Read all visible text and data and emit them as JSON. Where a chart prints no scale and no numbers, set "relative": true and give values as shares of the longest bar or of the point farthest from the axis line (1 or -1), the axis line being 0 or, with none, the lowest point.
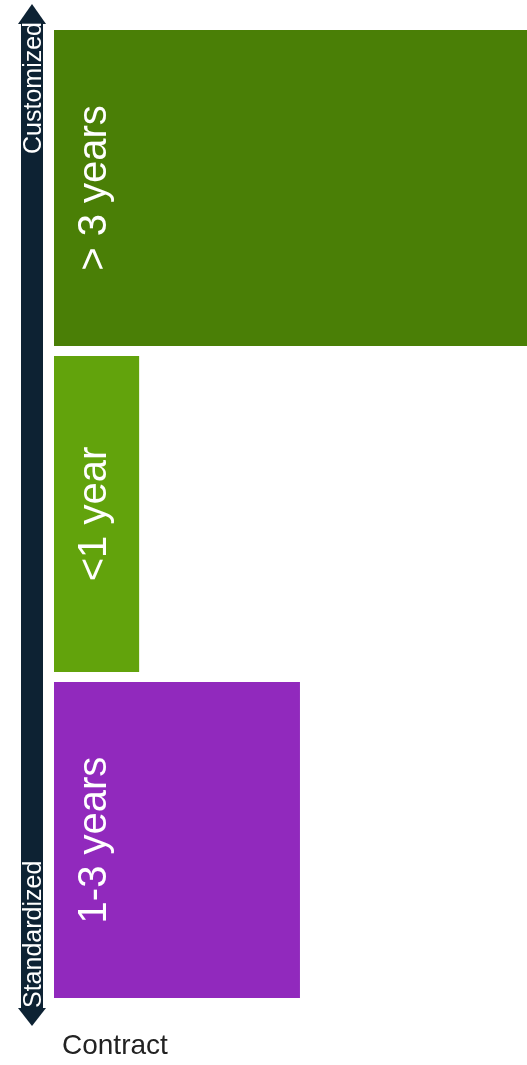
{
  "chart_data": {
    "type": "bar",
    "orientation": "horizontal",
    "relative": true,
    "xlabel": "Contract",
    "categories": [
      "> 3 years",
      "<1 year",
      "1-3 years"
    ],
    "values": [
      1,
      0.18,
      0.52
    ],
    "colors": [
      "#4a7f06",
      "#62a30c",
      "#9129bd"
    ],
    "annotations": [
      "Customized",
      "Standardized"
    ]
  }
}
